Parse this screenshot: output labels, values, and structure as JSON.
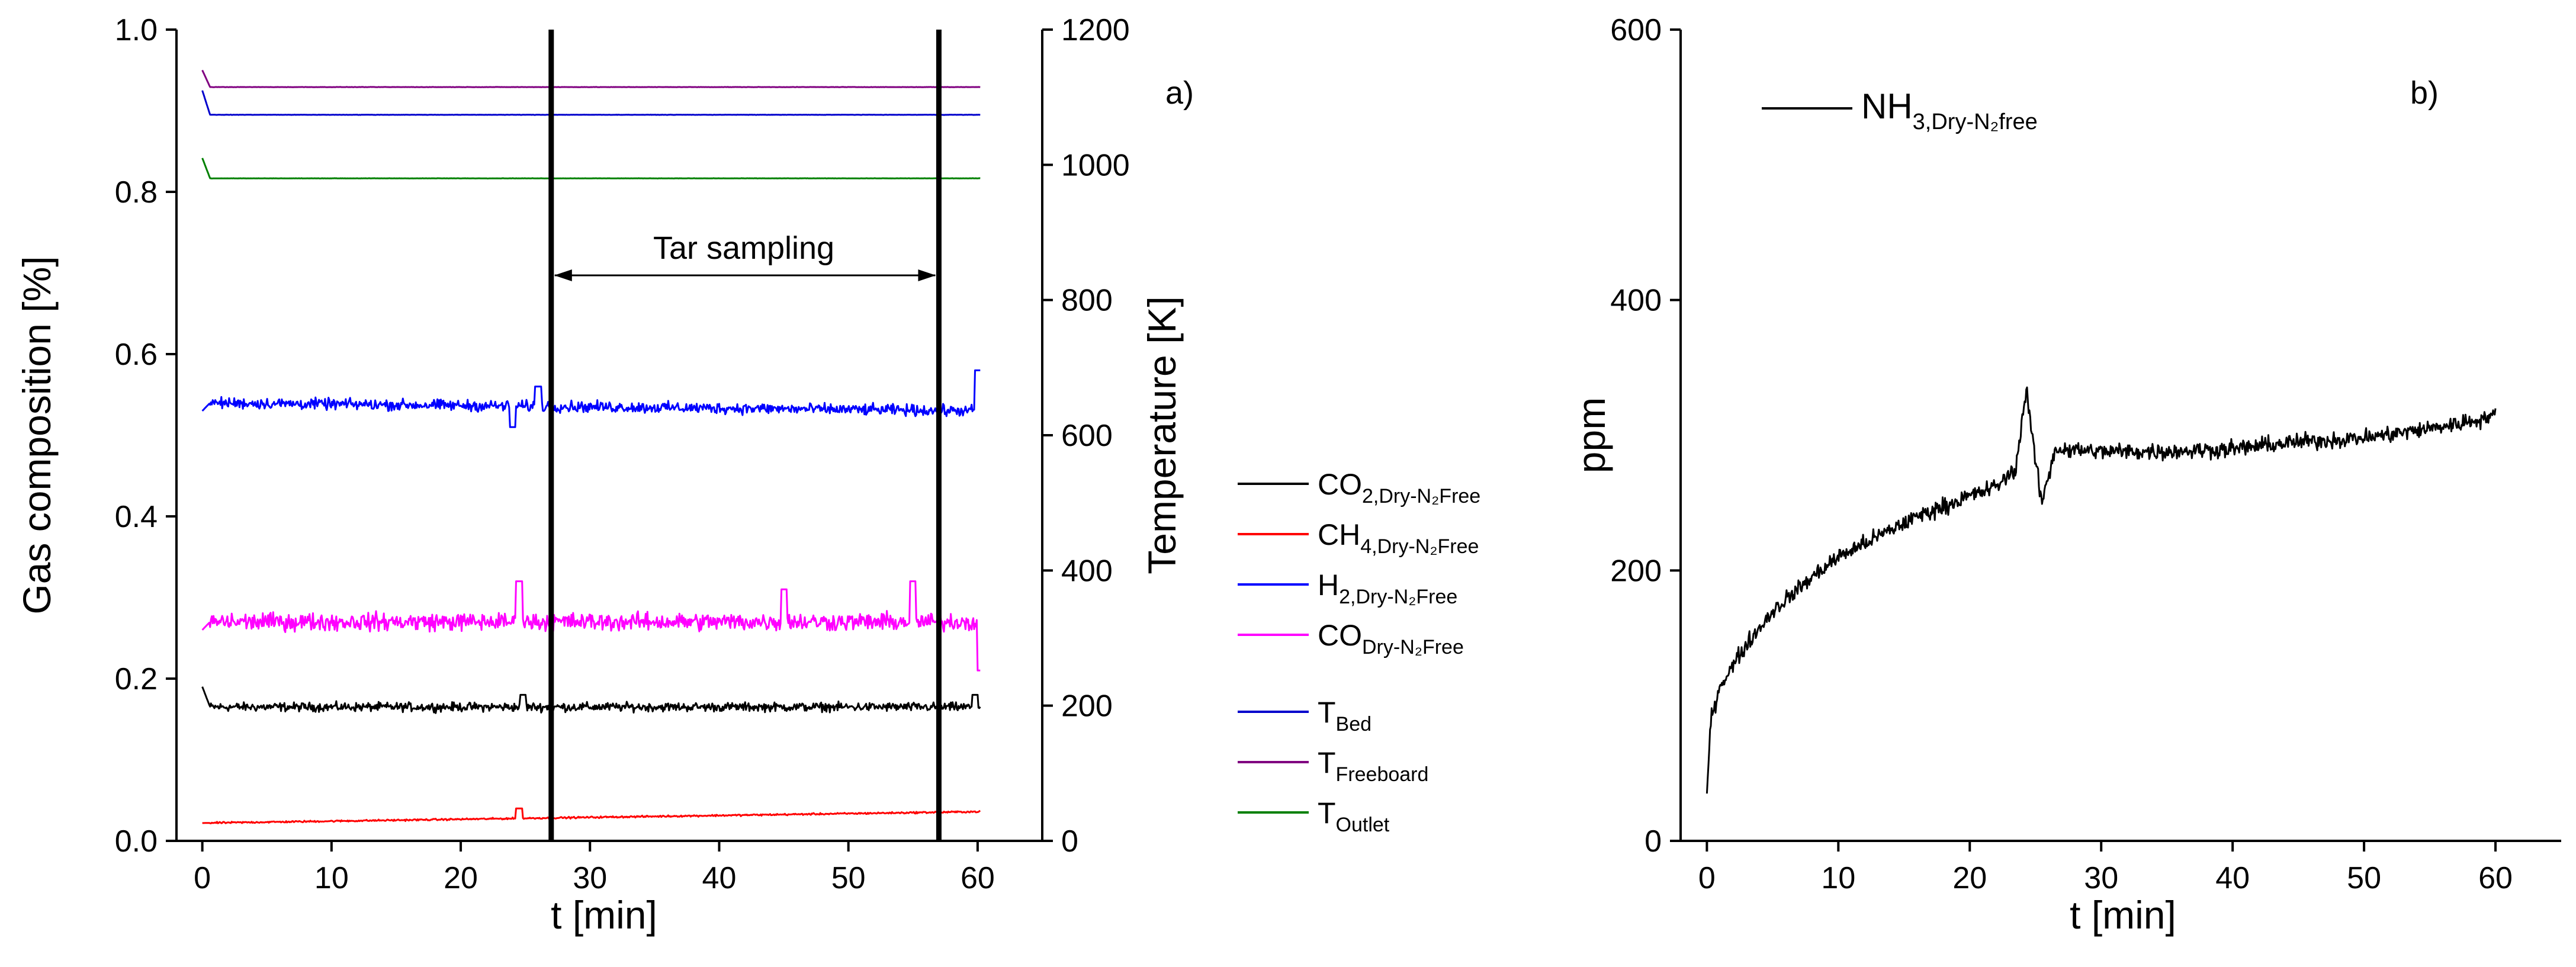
{
  "chart_data": [
    {
      "type": "line",
      "panel_label": "a)",
      "xlabel": "t [min]",
      "ylabel": "Gas composition [%]",
      "ylabel_right": "Temperature [K]",
      "xlim": [
        -2,
        65
      ],
      "ylim": [
        0,
        1.0
      ],
      "ylim_right": [
        0,
        1200
      ],
      "x_ticks": [
        "0",
        "10",
        "20",
        "30",
        "40",
        "50",
        "60"
      ],
      "y_ticks": [
        "0.0",
        "0.2",
        "0.4",
        "0.6",
        "0.8",
        "1.0"
      ],
      "y_ticks_right": [
        "0",
        "200",
        "400",
        "600",
        "800",
        "1000",
        "1200"
      ],
      "annotation": {
        "text": "Tar sampling",
        "start_min": 27,
        "end_min": 57
      },
      "legend": [
        {
          "main": "CO",
          "sub": "2,Dry-N₂Free",
          "color": "#000000"
        },
        {
          "main": "CH",
          "sub": "4,Dry-N₂Free",
          "color": "#ff0000"
        },
        {
          "main": "H",
          "sub": "2,Dry-N₂Free",
          "color": "#0000ff"
        },
        {
          "main": "CO",
          "sub": "Dry-N₂Free",
          "color": "#ff00ff"
        },
        {
          "main": "T",
          "sub": "Bed",
          "color": "#0000cc"
        },
        {
          "main": "T",
          "sub": "Freeboard",
          "color": "#800080"
        },
        {
          "main": "T",
          "sub": "Outlet",
          "color": "#008000"
        }
      ],
      "series": [
        {
          "name": "CO2,Dry-N2Free",
          "color": "#000000",
          "axis": "left",
          "start": 0.19,
          "level": 0.165,
          "noise": 0.008,
          "events": [
            [
              24.8,
              0.18
            ],
            [
              59.8,
              0.18
            ]
          ]
        },
        {
          "name": "CH4,Dry-N2Free",
          "color": "#ff0000",
          "axis": "left",
          "start": 0.022,
          "level": 0.022,
          "end_level": 0.036,
          "noise": 0.0015,
          "events": [
            [
              24.5,
              0.04
            ]
          ]
        },
        {
          "name": "H2,Dry-N2Free",
          "color": "#0000ff",
          "axis": "left",
          "start": 0.53,
          "level": 0.54,
          "end_level": 0.53,
          "noise": 0.01,
          "events": [
            [
              24.0,
              0.51
            ],
            [
              26.0,
              0.56
            ],
            [
              60.0,
              0.58
            ]
          ]
        },
        {
          "name": "CODry-N2Free",
          "color": "#ff00ff",
          "axis": "left",
          "start": 0.26,
          "level": 0.27,
          "noise": 0.016,
          "events": [
            [
              24.5,
              0.32
            ],
            [
              45.0,
              0.31
            ],
            [
              55.0,
              0.32
            ],
            [
              60.2,
              0.21
            ]
          ]
        },
        {
          "name": "TBed",
          "color": "#0000cc",
          "axis": "right",
          "start": 1110,
          "level": 1074,
          "noise": 0.3,
          "events": []
        },
        {
          "name": "TFreeboard",
          "color": "#800080",
          "axis": "right",
          "start": 1140,
          "level": 1115,
          "noise": 0.3,
          "events": []
        },
        {
          "name": "TOutlet",
          "color": "#008000",
          "axis": "right",
          "start": 1010,
          "level": 980,
          "noise": 0.3,
          "events": []
        }
      ]
    },
    {
      "type": "line",
      "panel_label": "b)",
      "xlabel": "t [min]",
      "ylabel": "ppm",
      "xlim": [
        -2,
        65
      ],
      "ylim": [
        0,
        600
      ],
      "x_ticks": [
        "0",
        "10",
        "20",
        "30",
        "40",
        "50",
        "60"
      ],
      "y_ticks": [
        "0",
        "200",
        "400",
        "600"
      ],
      "legend": [
        {
          "main": "NH",
          "sub": "3,Dry-N₂free",
          "color": "#000000"
        }
      ],
      "series": [
        {
          "name": "NH3,Dry-N2free",
          "color": "#000000",
          "curve": [
            [
              0,
              35
            ],
            [
              0.3,
              90
            ],
            [
              1,
              115
            ],
            [
              3,
              145
            ],
            [
              5,
              170
            ],
            [
              8,
              195
            ],
            [
              10,
              210
            ],
            [
              13,
              225
            ],
            [
              16,
              240
            ],
            [
              20,
              255
            ],
            [
              22,
              262
            ],
            [
              23.5,
              275
            ],
            [
              24.3,
              335
            ],
            [
              25.0,
              280
            ],
            [
              25.5,
              250
            ],
            [
              26.5,
              290
            ],
            [
              30,
              288
            ],
            [
              35,
              288
            ],
            [
              40,
              290
            ],
            [
              45,
              295
            ],
            [
              50,
              298
            ],
            [
              55,
              305
            ],
            [
              58,
              310
            ],
            [
              60,
              315
            ]
          ],
          "noise": 9
        }
      ]
    }
  ]
}
